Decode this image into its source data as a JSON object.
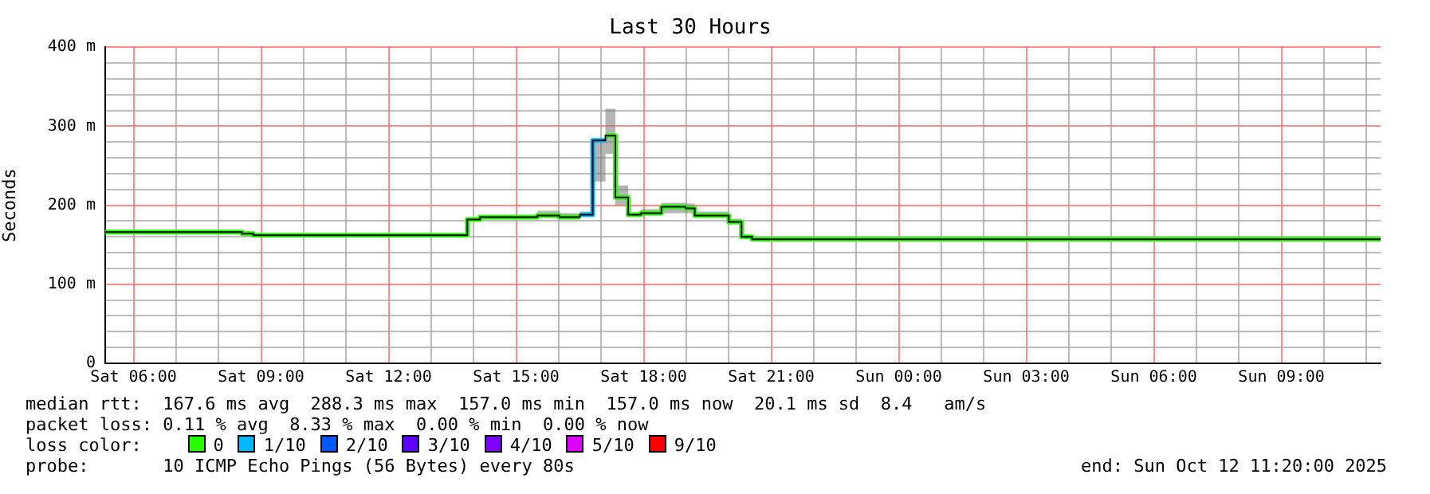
{
  "chart_data": {
    "type": "line",
    "title": "Last 30 Hours",
    "ylabel": "Seconds",
    "legend_title": "loss color:",
    "legend": "bottom",
    "grid": true,
    "xlim": [
      "2025-10-11T05:20",
      "2025-10-12T11:20"
    ],
    "xticks": [
      {
        "value": "2025-10-11T06:00",
        "label": "Sat 06:00"
      },
      {
        "value": "2025-10-11T07:00",
        "label": null
      },
      {
        "value": "2025-10-11T08:00",
        "label": null
      },
      {
        "value": "2025-10-11T09:00",
        "label": "Sat 09:00"
      },
      {
        "value": "2025-10-11T10:00",
        "label": null
      },
      {
        "value": "2025-10-11T11:00",
        "label": null
      },
      {
        "value": "2025-10-11T12:00",
        "label": "Sat 12:00"
      },
      {
        "value": "2025-10-11T13:00",
        "label": null
      },
      {
        "value": "2025-10-11T14:00",
        "label": null
      },
      {
        "value": "2025-10-11T15:00",
        "label": "Sat 15:00"
      },
      {
        "value": "2025-10-11T16:00",
        "label": null
      },
      {
        "value": "2025-10-11T17:00",
        "label": null
      },
      {
        "value": "2025-10-11T18:00",
        "label": "Sat 18:00"
      },
      {
        "value": "2025-10-11T19:00",
        "label": null
      },
      {
        "value": "2025-10-11T20:00",
        "label": null
      },
      {
        "value": "2025-10-11T21:00",
        "label": "Sat 21:00"
      },
      {
        "value": "2025-10-11T22:00",
        "label": null
      },
      {
        "value": "2025-10-11T23:00",
        "label": null
      },
      {
        "value": "2025-10-12T00:00",
        "label": "Sun 00:00"
      },
      {
        "value": "2025-10-12T01:00",
        "label": null
      },
      {
        "value": "2025-10-12T02:00",
        "label": null
      },
      {
        "value": "2025-10-12T03:00",
        "label": "Sun 03:00"
      },
      {
        "value": "2025-10-12T04:00",
        "label": null
      },
      {
        "value": "2025-10-12T05:00",
        "label": null
      },
      {
        "value": "2025-10-12T06:00",
        "label": "Sun 06:00"
      },
      {
        "value": "2025-10-12T07:00",
        "label": null
      },
      {
        "value": "2025-10-12T08:00",
        "label": null
      },
      {
        "value": "2025-10-12T09:00",
        "label": "Sun 09:00"
      },
      {
        "value": "2025-10-12T10:00",
        "label": null
      },
      {
        "value": "2025-10-12T11:00",
        "label": null
      }
    ],
    "ylim": [
      0,
      400
    ],
    "yticks": [
      0,
      {
        "value": 20,
        "label": null
      },
      {
        "value": 40,
        "label": null
      },
      {
        "value": 60,
        "label": null
      },
      {
        "value": 80,
        "label": null
      },
      {
        "value": 100,
        "label": "100 m"
      },
      {
        "value": 120,
        "label": null
      },
      {
        "value": 140,
        "label": null
      },
      {
        "value": 160,
        "label": null
      },
      {
        "value": 180,
        "label": null
      },
      {
        "value": 200,
        "label": "200 m"
      },
      {
        "value": 220,
        "label": null
      },
      {
        "value": 240,
        "label": null
      },
      {
        "value": 260,
        "label": null
      },
      {
        "value": 280,
        "label": null
      },
      {
        "value": 300,
        "label": "300 m"
      },
      {
        "value": 320,
        "label": null
      },
      {
        "value": 340,
        "label": null
      },
      {
        "value": 360,
        "label": null
      },
      {
        "value": 380,
        "label": null
      },
      {
        "value": 400,
        "label": "400 m"
      }
    ],
    "series": [
      {
        "type": "step",
        "color": "#000000",
        "x": [
          "2025-10-11T05:20",
          "2025-10-11T08:33",
          "2025-10-11T08:49",
          "2025-10-11T13:51",
          "2025-10-11T14:09",
          "2025-10-11T15:30",
          "2025-10-11T16:01",
          "2025-10-11T16:30",
          "2025-10-11T16:48",
          "2025-10-11T17:06",
          "2025-10-11T17:20",
          "2025-10-11T17:38",
          "2025-10-11T17:56",
          "2025-10-11T18:25",
          "2025-10-11T18:59",
          "2025-10-11T19:12",
          "2025-10-11T20:00",
          "2025-10-11T20:18",
          "2025-10-11T20:33",
          "2025-10-12T11:20"
        ],
        "values": [
          166,
          164,
          162,
          182,
          185,
          187,
          185,
          188,
          282,
          288,
          210,
          188,
          190,
          198,
          196,
          187,
          179,
          160,
          157,
          157
        ],
        "lower": [
          165,
          163,
          161,
          181,
          184,
          185,
          184,
          186,
          230,
          265,
          200,
          186,
          187,
          190,
          190,
          185,
          176,
          158,
          156,
          156
        ],
        "upper": [
          167,
          165,
          164,
          184,
          186,
          193,
          190,
          192,
          283,
          322,
          225,
          190,
          195,
          203,
          202,
          192,
          183,
          161,
          158,
          158
        ]
      },
      {
        "name": "0",
        "color": "#26ff00",
        "x": [
          "2025-10-11T05:20",
          "2025-10-11T08:33",
          "2025-10-11T08:33",
          "2025-10-11T08:49",
          "2025-10-11T08:49",
          "2025-10-11T13:51",
          "2025-10-11T13:51",
          "2025-10-11T14:09",
          "2025-10-11T14:09",
          "2025-10-11T15:30",
          "2025-10-11T15:30",
          "2025-10-11T16:01",
          "2025-10-11T16:01",
          "2025-10-11T16:30"
        ],
        "values": [
          166,
          166,
          164,
          164,
          162,
          162,
          182,
          182,
          185,
          185,
          187,
          187,
          185,
          185
        ]
      },
      {
        "name": "1/10",
        "color": "#00b8ff",
        "x": [
          "2025-10-11T16:30",
          "2025-10-11T16:48",
          "2025-10-11T16:48",
          "2025-10-11T17:06"
        ],
        "values": [
          188,
          188,
          282,
          282
        ]
      },
      {
        "color": "#26ff00",
        "x": [
          "2025-10-11T17:06",
          "2025-10-11T17:20",
          "2025-10-11T17:20",
          "2025-10-11T17:38",
          "2025-10-11T17:38",
          "2025-10-11T17:56",
          "2025-10-11T17:56",
          "2025-10-11T18:25",
          "2025-10-11T18:25",
          "2025-10-11T18:59",
          "2025-10-11T18:59",
          "2025-10-11T19:12",
          "2025-10-11T19:12",
          "2025-10-11T20:00",
          "2025-10-11T20:00",
          "2025-10-11T20:18",
          "2025-10-11T20:18",
          "2025-10-11T20:33",
          "2025-10-11T20:33",
          "2025-10-12T11:20"
        ],
        "values": [
          288,
          288,
          210,
          210,
          188,
          188,
          190,
          190,
          198,
          198,
          196,
          196,
          187,
          187,
          179,
          179,
          160,
          160,
          157,
          157
        ]
      },
      {
        "name": "2/10",
        "color": "#0059ff"
      },
      {
        "name": "3/10",
        "color": "#5e00ff"
      },
      {
        "name": "4/10",
        "color": "#7e00ff"
      },
      {
        "name": "5/10",
        "color": "#dd00ff"
      },
      {
        "name": "9/10",
        "color": "#ff0000"
      }
    ],
    "annotations": [
      "median rtt:  167.6 ms avg  288.3 ms max  157.0 ms min  157.0 ms now  20.1 ms sd  8.4   am/s",
      "packet loss: 0.11 % avg  8.33 % max  0.00 % min  0.00 % now",
      "probe:       10 ICMP Echo Pings (56 Bytes) every 80s",
      "end: Sun Oct 12 11:20:00 2025"
    ]
  }
}
